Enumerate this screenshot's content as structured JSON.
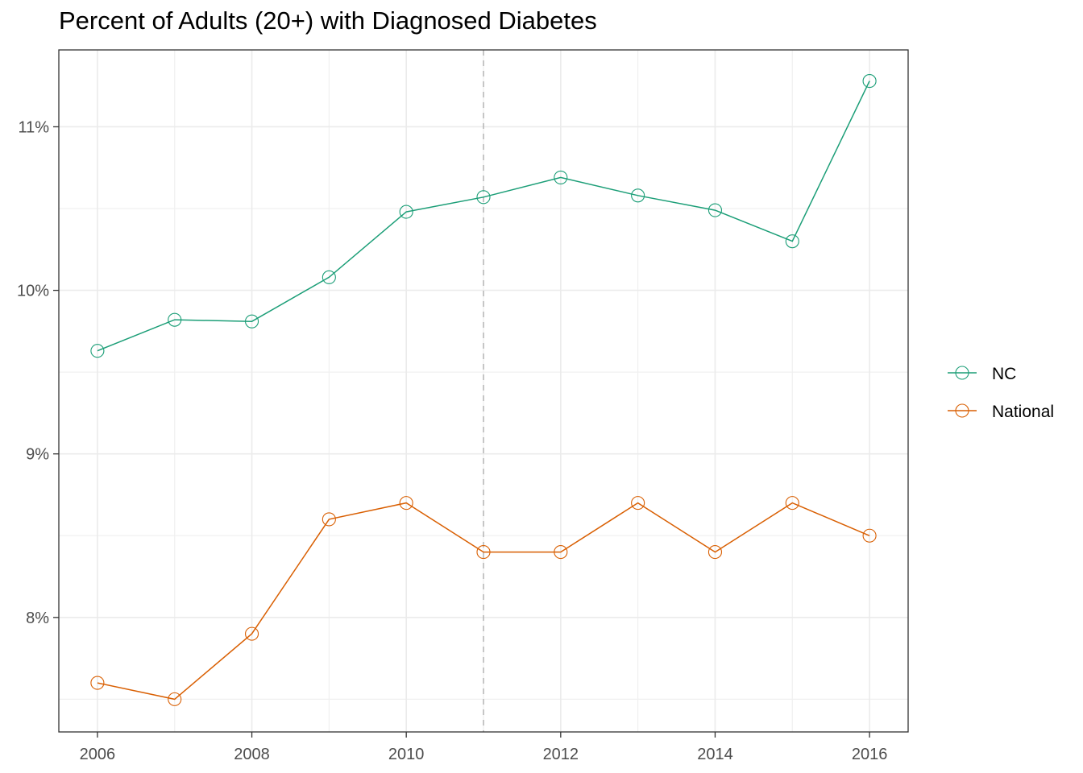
{
  "chart_data": {
    "type": "line",
    "title": "Percent of Adults (20+) with Diagnosed Diabetes",
    "xlabel": "",
    "ylabel": "",
    "x": [
      2006,
      2007,
      2008,
      2009,
      2010,
      2011,
      2012,
      2013,
      2014,
      2015,
      2016
    ],
    "x_ticks": [
      2006,
      2008,
      2010,
      2012,
      2014,
      2016
    ],
    "x_tick_labels": [
      "2006",
      "2008",
      "2010",
      "2012",
      "2014",
      "2016"
    ],
    "y_ticks": [
      8,
      9,
      10,
      11
    ],
    "y_tick_labels": [
      "8%",
      "9%",
      "10%",
      "11%"
    ],
    "xlim": [
      2005.5,
      2016.5
    ],
    "ylim": [
      7.3,
      11.47
    ],
    "grid": true,
    "legend_position": "right",
    "reference_line": {
      "x": 2011,
      "style": "dashed"
    },
    "series": [
      {
        "name": "NC",
        "color": "#1b9e77",
        "values": [
          9.63,
          9.82,
          9.81,
          10.08,
          10.48,
          10.57,
          10.69,
          10.58,
          10.49,
          10.3,
          11.28
        ]
      },
      {
        "name": "National",
        "color": "#d95f02",
        "values": [
          7.6,
          7.5,
          7.9,
          8.6,
          8.7,
          8.4,
          8.4,
          8.7,
          8.4,
          8.7,
          8.5
        ]
      }
    ]
  }
}
